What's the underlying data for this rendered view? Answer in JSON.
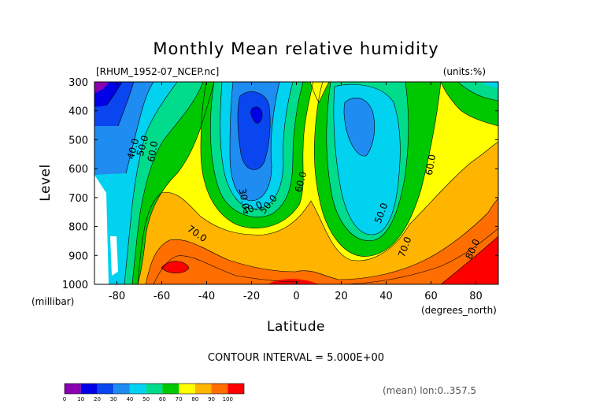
{
  "chart_data": {
    "type": "heatmap",
    "title": "Monthly Mean relative humidity",
    "source_label": "[RHUM_1952-07_NCEP.nc]",
    "units_label": "(units:%)",
    "xlabel": "Latitude",
    "ylabel": "Level",
    "x_unit_label": "(degrees_north)",
    "y_unit_label": "(millibar)",
    "xlim": [
      -90,
      90
    ],
    "ylim": [
      1000,
      300
    ],
    "x_ticks": [
      -80,
      -60,
      -40,
      -20,
      0,
      20,
      40,
      60,
      80
    ],
    "y_ticks": [
      300,
      400,
      500,
      600,
      700,
      800,
      900,
      1000
    ],
    "contour_interval_text": "CONTOUR INTERVAL = 5.000E+00",
    "footnote": "(mean) lon:0..357.5",
    "contour_labels": [
      "40.0",
      "50.0",
      "60.0",
      "30.0",
      "40.0",
      "50.0",
      "60.0",
      "70.0",
      "50.0",
      "60.0",
      "70.0",
      "80.0"
    ],
    "colorbar": {
      "ticks": [
        "0",
        "10",
        "20",
        "30",
        "40",
        "50",
        "60",
        "70",
        "80",
        "90",
        "100"
      ],
      "colors": [
        "#8a00b0",
        "#0000e6",
        "#0a46f0",
        "#1e8cf0",
        "#00d2f0",
        "#00dc8c",
        "#00c800",
        "#ffff00",
        "#ffb400",
        "#ff6e00",
        "#ff0000"
      ]
    }
  }
}
